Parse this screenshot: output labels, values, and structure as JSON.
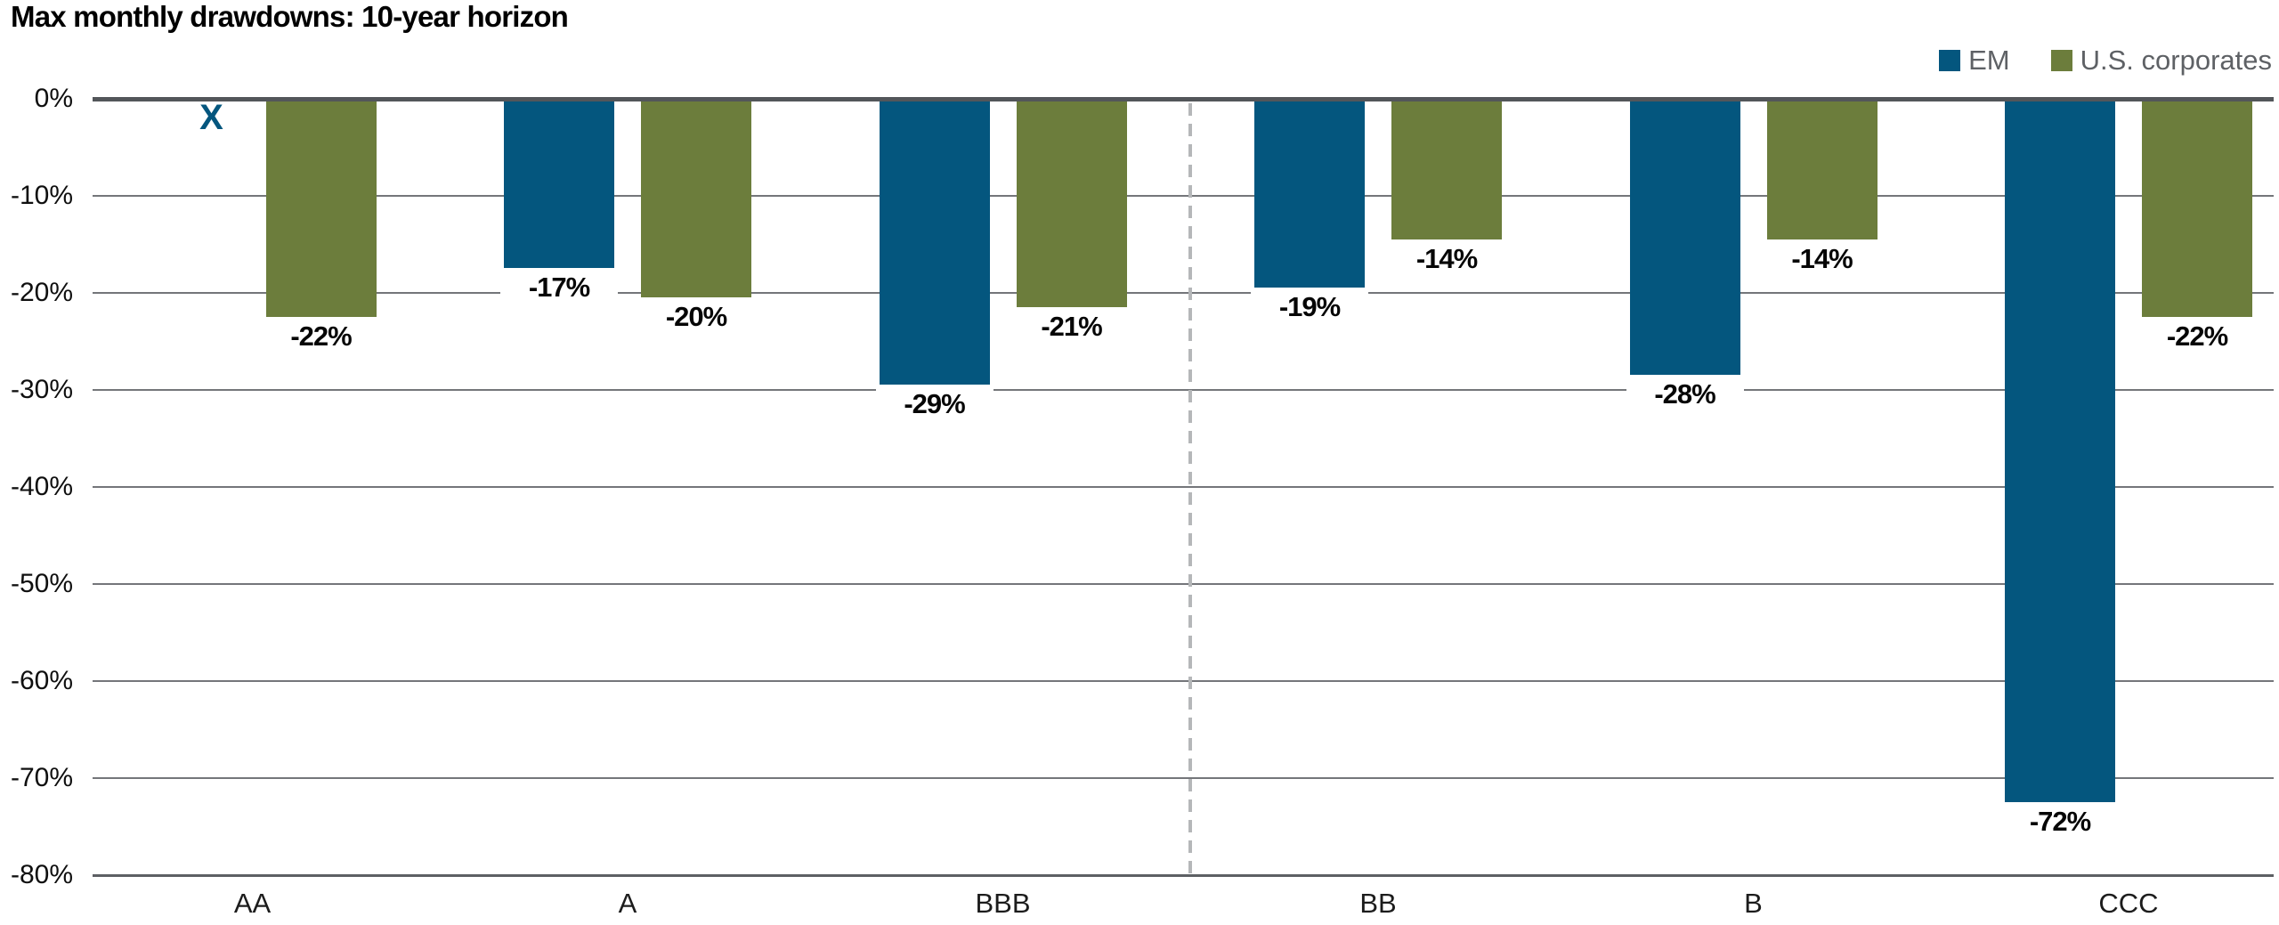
{
  "title": "Max monthly drawdowns: 10-year horizon",
  "legend": {
    "position": "top-right",
    "items": [
      {
        "label": "EM",
        "color": "#04567e"
      },
      {
        "label": "U.S. corporates",
        "color": "#6c7d3c"
      }
    ]
  },
  "chart_data": {
    "type": "bar",
    "title": "Max monthly drawdowns: 10-year horizon",
    "categories": [
      "AA",
      "A",
      "BBB",
      "BB",
      "B",
      "CCC"
    ],
    "series": [
      {
        "name": "EM",
        "color": "#04567e",
        "values": [
          null,
          -17,
          -29,
          -19,
          -28,
          -72
        ],
        "data_labels": [
          "",
          "-17%",
          "-29%",
          "-19%",
          "-28%",
          "-72%"
        ]
      },
      {
        "name": "U.S. corporates",
        "color": "#6c7d3c",
        "values": [
          -22,
          -20,
          -21,
          -14,
          -14,
          -22
        ],
        "data_labels": [
          "-22%",
          "-20%",
          "-21%",
          "-14%",
          "-14%",
          "-22%"
        ]
      }
    ],
    "missing_value_marker": {
      "series": "EM",
      "category": "AA",
      "symbol": "X",
      "color": "#04567e"
    },
    "y_axis": {
      "min": -80,
      "max": 0,
      "tick_labels": [
        "0%",
        "-10%",
        "-20%",
        "-30%",
        "-40%",
        "-50%",
        "-60%",
        "-70%",
        "-80%"
      ]
    },
    "separator": {
      "after_category": "BBB",
      "style": "dashed",
      "color": "#b5b7b9"
    },
    "grid": true,
    "legend_position": "top-right",
    "axis_color": "#53565a",
    "gridline_color": "#74767a",
    "bottom_axis_color": "#5d6064",
    "value_label_background": "#ffffff"
  }
}
